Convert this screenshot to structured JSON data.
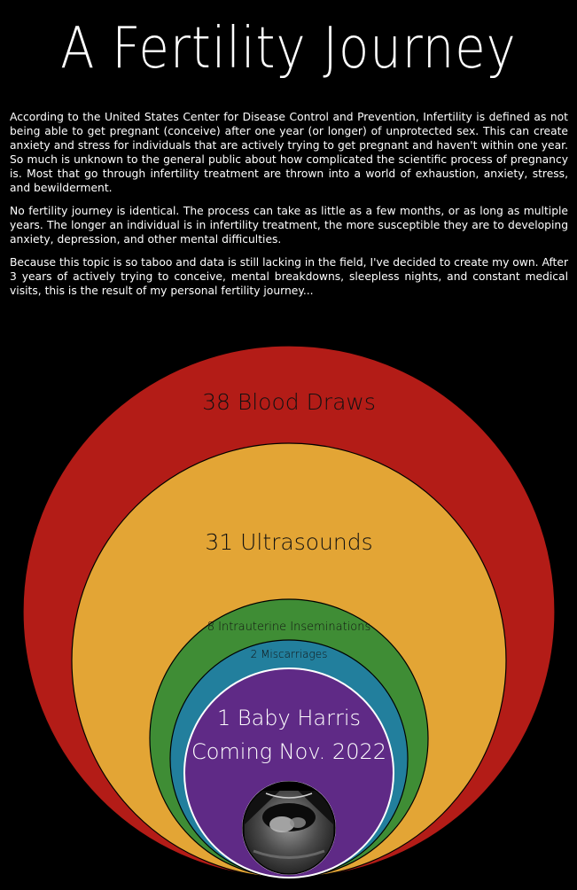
{
  "title": "A Fertility Journey",
  "paragraphs": [
    "According to the United States Center for Disease Control and Prevention, Infertility is defined as not being able to get pregnant (conceive) after one year (or longer) of unprotected sex. This can create anxiety and stress for individuals that are actively trying to get pregnant and haven't within one year. So much is unknown to the general public about how complicated the scientific process of pregnancy is. Most that go through infertility treatment are thrown into a world of exhaustion, anxiety, stress, and bewilderment.",
    "No fertility journey is identical. The process can take as little as a few months, or as long as multiple years. The longer an individual is in infertility treatment, the more susceptible they are to developing anxiety, depression, and other mental difficulties.",
    "Because this topic is so taboo and data is still lacking in the field, I've decided to create my own. After 3 years of actively trying to conceive, mental breakdowns, sleepless nights, and constant medical visits, this is the result of my personal fertility journey..."
  ],
  "chart_data": {
    "type": "nested-circles",
    "items": [
      {
        "value": 38,
        "label": "38 Blood Draws",
        "color": "#b31c17"
      },
      {
        "value": 31,
        "label": "31 Ultrasounds",
        "color": "#e3a535"
      },
      {
        "value": 8,
        "label": "8 Intrauterine Inseminations",
        "color": "#3f8d35"
      },
      {
        "value": 2,
        "label": "2 Miscarriages",
        "color": "#227f9d"
      },
      {
        "value": 1,
        "label": "1 Baby Harris",
        "sublabel": "Coming Nov. 2022",
        "color": "#5f2a86"
      }
    ]
  },
  "ultrasound_image": "ultrasound-photo"
}
